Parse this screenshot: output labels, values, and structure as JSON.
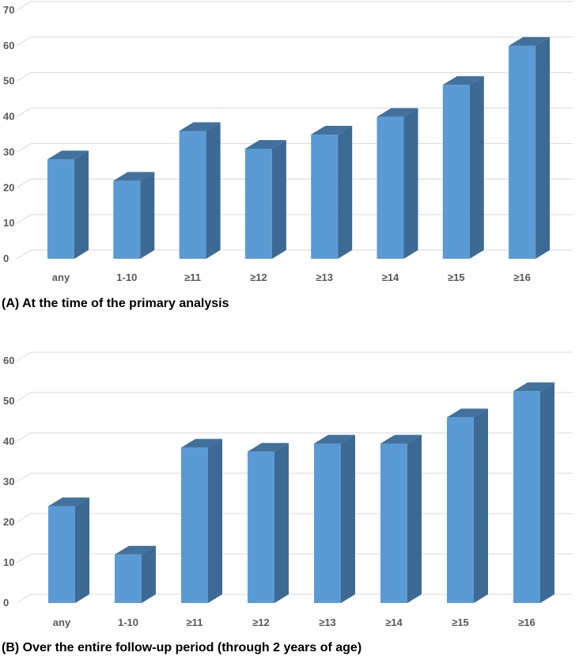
{
  "colors": {
    "bar_front": "#5b9bd5",
    "bar_side": "#3c6a94",
    "bar_top": "#41719c",
    "grid": "#d9d9d9"
  },
  "chart_data": [
    {
      "type": "bar",
      "caption": "(A) At the time of the primary analysis",
      "categories": [
        "any",
        "1-10",
        "≥11",
        "≥12",
        "≥13",
        "≥14",
        "≥15",
        "≥16"
      ],
      "values": [
        28,
        22,
        36,
        31,
        35,
        40,
        49,
        60
      ],
      "ylim": [
        0,
        70
      ],
      "yticks": [
        0,
        10,
        20,
        30,
        40,
        50,
        60,
        70
      ],
      "grid": true,
      "legend": "none"
    },
    {
      "type": "bar",
      "caption": "(B) Over the entire follow-up period (through 2 years of age)",
      "categories": [
        "any",
        "1-10",
        "≥11",
        "≥12",
        "≥13",
        "≥14",
        "≥15",
        "≥16"
      ],
      "values": [
        24,
        12,
        38.5,
        37.5,
        39.5,
        39.5,
        46,
        52.5
      ],
      "ylim": [
        0,
        60
      ],
      "yticks": [
        0,
        10,
        20,
        30,
        40,
        50,
        60
      ],
      "grid": true,
      "legend": "none"
    }
  ]
}
